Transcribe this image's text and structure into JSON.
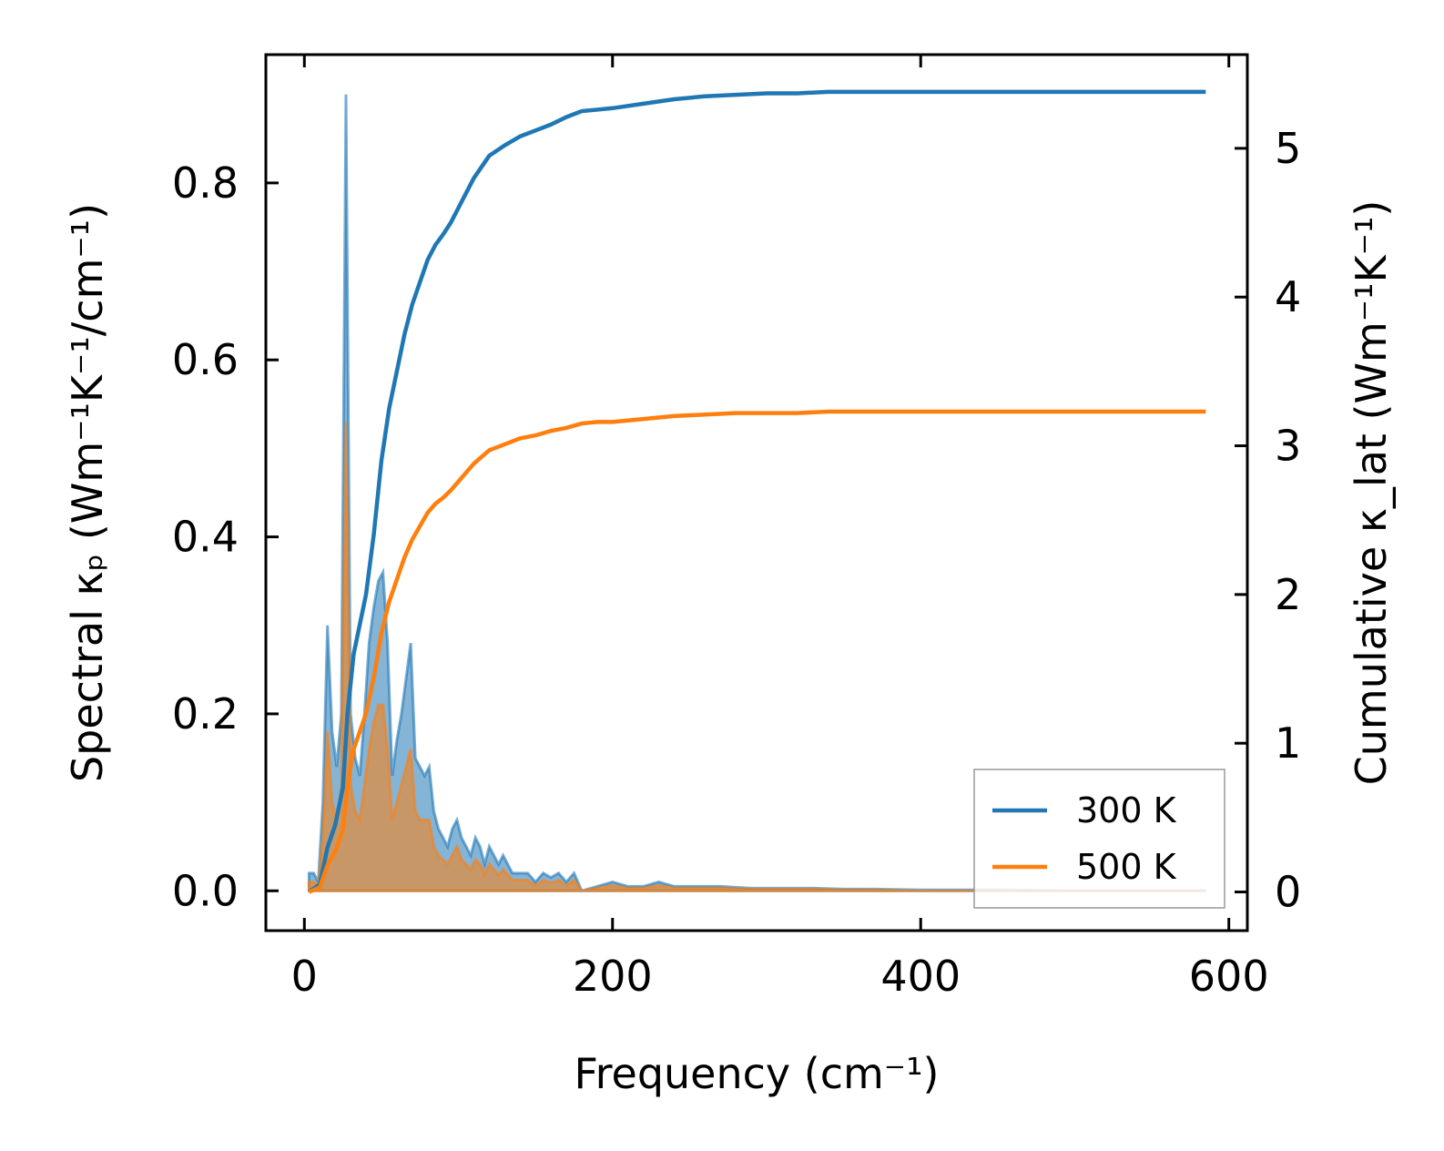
{
  "chart_data": {
    "type": "line",
    "xlabel": "Frequency (cm⁻¹)",
    "ylabel_left": "Spectral κₚ (Wm⁻¹K⁻¹/cm⁻¹)",
    "ylabel_right": "Cumulative κ_lat (Wm⁻¹K⁻¹)",
    "xlim": [
      -25,
      612
    ],
    "ylim_left": [
      -0.045,
      0.945
    ],
    "ylim_right": [
      -0.26,
      5.63
    ],
    "xticks": [
      0,
      200,
      400,
      600
    ],
    "yticks_left": [
      0.0,
      0.2,
      0.4,
      0.6,
      0.8
    ],
    "yticks_right": [
      0,
      1,
      2,
      3,
      4,
      5
    ],
    "ytick_labels_left": [
      "0.0",
      "0.2",
      "0.4",
      "0.6",
      "0.8"
    ],
    "ytick_labels_right": [
      "0",
      "1",
      "2",
      "3",
      "4",
      "5"
    ],
    "legend": {
      "position": "lower-right",
      "entries": [
        "300 K",
        "500 K"
      ]
    },
    "colors": {
      "300K": "#1f77b4",
      "500K": "#ff7f0e"
    },
    "spectral_x": [
      3,
      6,
      9,
      12,
      15,
      18,
      21,
      24,
      27,
      30,
      33,
      36,
      39,
      42,
      45,
      48,
      51,
      54,
      57,
      60,
      63,
      66,
      69,
      72,
      75,
      78,
      81,
      84,
      87,
      90,
      93,
      96,
      99,
      102,
      105,
      108,
      111,
      114,
      117,
      120,
      123,
      126,
      129,
      132,
      135,
      140,
      145,
      150,
      155,
      160,
      165,
      170,
      175,
      180,
      190,
      200,
      210,
      220,
      230,
      240,
      250,
      270,
      290,
      310,
      330,
      350,
      370,
      400,
      450,
      500,
      550,
      585
    ],
    "series": [
      {
        "name": "300 K",
        "spectral": [
          0.02,
          0.02,
          0.01,
          0.1,
          0.3,
          0.18,
          0.14,
          0.2,
          0.9,
          0.2,
          0.15,
          0.13,
          0.2,
          0.28,
          0.32,
          0.35,
          0.36,
          0.28,
          0.13,
          0.17,
          0.2,
          0.24,
          0.28,
          0.15,
          0.14,
          0.13,
          0.14,
          0.09,
          0.07,
          0.06,
          0.05,
          0.07,
          0.08,
          0.06,
          0.05,
          0.04,
          0.06,
          0.05,
          0.03,
          0.05,
          0.04,
          0.03,
          0.04,
          0.03,
          0.02,
          0.02,
          0.02,
          0.01,
          0.02,
          0.015,
          0.02,
          0.01,
          0.02,
          0.0,
          0.005,
          0.01,
          0.005,
          0.005,
          0.01,
          0.005,
          0.005,
          0.005,
          0.003,
          0.003,
          0.003,
          0.002,
          0.002,
          0.001,
          0.001,
          0.0,
          0.0,
          0.0
        ],
        "cumulative_x": [
          3,
          10,
          15,
          20,
          25,
          28,
          32,
          36,
          40,
          45,
          50,
          55,
          60,
          65,
          70,
          75,
          80,
          85,
          90,
          95,
          100,
          110,
          120,
          130,
          140,
          150,
          160,
          170,
          180,
          190,
          200,
          220,
          240,
          260,
          280,
          300,
          320,
          340,
          360,
          380,
          400,
          450,
          500,
          550,
          585
        ],
        "cumulative": [
          0.0,
          0.05,
          0.3,
          0.45,
          0.7,
          1.2,
          1.6,
          1.8,
          2.0,
          2.4,
          2.9,
          3.25,
          3.5,
          3.75,
          3.95,
          4.1,
          4.25,
          4.35,
          4.42,
          4.5,
          4.6,
          4.8,
          4.95,
          5.02,
          5.08,
          5.12,
          5.16,
          5.21,
          5.25,
          5.26,
          5.27,
          5.3,
          5.33,
          5.35,
          5.36,
          5.37,
          5.37,
          5.38,
          5.38,
          5.38,
          5.38,
          5.38,
          5.38,
          5.38,
          5.38
        ]
      },
      {
        "name": "500 K",
        "spectral": [
          0.01,
          0.01,
          0.005,
          0.06,
          0.18,
          0.1,
          0.08,
          0.12,
          0.53,
          0.12,
          0.09,
          0.08,
          0.12,
          0.16,
          0.19,
          0.21,
          0.21,
          0.16,
          0.08,
          0.1,
          0.12,
          0.14,
          0.16,
          0.09,
          0.08,
          0.08,
          0.08,
          0.05,
          0.04,
          0.035,
          0.03,
          0.04,
          0.05,
          0.035,
          0.03,
          0.024,
          0.035,
          0.03,
          0.018,
          0.03,
          0.024,
          0.018,
          0.024,
          0.018,
          0.012,
          0.012,
          0.012,
          0.006,
          0.012,
          0.009,
          0.012,
          0.006,
          0.012,
          0.0,
          0.003,
          0.006,
          0.003,
          0.003,
          0.006,
          0.003,
          0.003,
          0.003,
          0.002,
          0.002,
          0.002,
          0.001,
          0.001,
          0.0,
          0.0,
          0.0,
          0.0,
          0.0
        ],
        "cumulative_x": [
          3,
          10,
          15,
          20,
          25,
          28,
          32,
          36,
          40,
          45,
          50,
          55,
          60,
          65,
          70,
          75,
          80,
          85,
          90,
          95,
          100,
          110,
          120,
          130,
          140,
          150,
          160,
          170,
          180,
          190,
          200,
          220,
          240,
          260,
          280,
          300,
          320,
          340,
          360,
          380,
          400,
          450,
          500,
          550,
          585
        ],
        "cumulative": [
          0.0,
          0.03,
          0.18,
          0.27,
          0.42,
          0.72,
          0.96,
          1.08,
          1.2,
          1.44,
          1.74,
          1.95,
          2.1,
          2.25,
          2.37,
          2.46,
          2.55,
          2.61,
          2.65,
          2.7,
          2.76,
          2.88,
          2.97,
          3.01,
          3.05,
          3.07,
          3.1,
          3.12,
          3.15,
          3.16,
          3.16,
          3.18,
          3.2,
          3.21,
          3.22,
          3.22,
          3.22,
          3.23,
          3.23,
          3.23,
          3.23,
          3.23,
          3.23,
          3.23,
          3.23
        ]
      }
    ]
  }
}
